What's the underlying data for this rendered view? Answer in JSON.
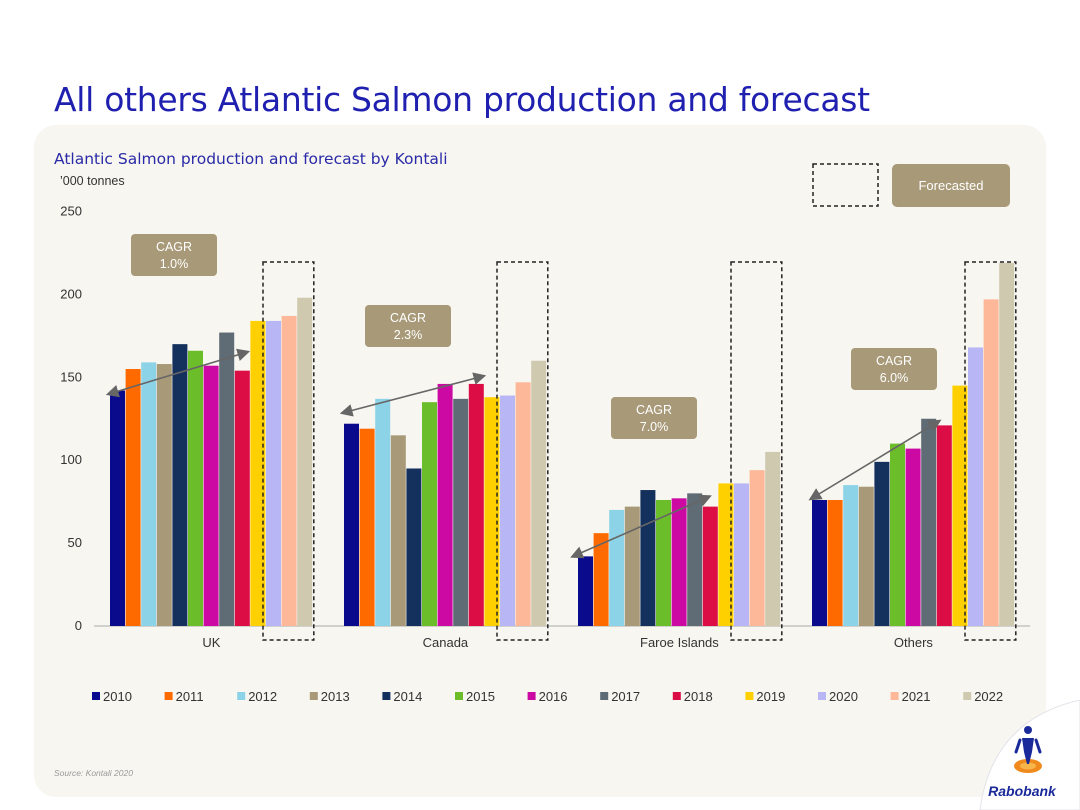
{
  "page": {
    "title": "All others Atlantic Salmon production and forecast",
    "subtitle": "Atlantic Salmon production and forecast by  Kontali",
    "unit": "’000 tonnes",
    "source": "Source: Kontali 2020",
    "logo_text": "Rabobank",
    "forecast_legend_label": "Forecasted"
  },
  "chart_data": {
    "type": "bar",
    "categories": [
      "UK",
      "Canada",
      "Faroe Islands",
      "Others"
    ],
    "ylim": [
      0,
      250
    ],
    "yticks": [
      0,
      50,
      100,
      150,
      200,
      250
    ],
    "legend_position": "bottom",
    "grid": false,
    "series": [
      {
        "name": "2010",
        "color": "#0a0a8c",
        "values": [
          142,
          122,
          42,
          76
        ]
      },
      {
        "name": "2011",
        "color": "#ff6a00",
        "values": [
          155,
          119,
          56,
          76
        ]
      },
      {
        "name": "2012",
        "color": "#8dd3e8",
        "values": [
          159,
          137,
          70,
          85
        ]
      },
      {
        "name": "2013",
        "color": "#a89a78",
        "values": [
          158,
          115,
          72,
          84
        ]
      },
      {
        "name": "2014",
        "color": "#14305c",
        "values": [
          170,
          95,
          82,
          99
        ]
      },
      {
        "name": "2015",
        "color": "#6cbd2a",
        "values": [
          166,
          135,
          76,
          110
        ]
      },
      {
        "name": "2016",
        "color": "#cc0aa3",
        "values": [
          157,
          146,
          77,
          107
        ]
      },
      {
        "name": "2017",
        "color": "#5f6b75",
        "values": [
          177,
          137,
          80,
          125
        ]
      },
      {
        "name": "2018",
        "color": "#dc0c44",
        "values": [
          154,
          146,
          72,
          121
        ]
      },
      {
        "name": "2019",
        "color": "#ffd000",
        "values": [
          184,
          138,
          86,
          145
        ]
      },
      {
        "name": "2020",
        "color": "#b8b6f5",
        "values": [
          184,
          139,
          86,
          168
        ]
      },
      {
        "name": "2021",
        "color": "#fdb89a",
        "values": [
          187,
          147,
          94,
          197
        ]
      },
      {
        "name": "2022",
        "color": "#cfc9b0",
        "values": [
          198,
          160,
          105,
          219
        ]
      }
    ],
    "forecast_series": [
      "2020",
      "2021",
      "2022"
    ],
    "annotations": [
      {
        "category": "UK",
        "label_line1": "CAGR",
        "label_line2": "1.0%"
      },
      {
        "category": "Canada",
        "label_line1": "CAGR",
        "label_line2": "2.3%"
      },
      {
        "category": "Faroe Islands",
        "label_line1": "CAGR",
        "label_line2": "7.0%"
      },
      {
        "category": "Others",
        "label_line1": "CAGR",
        "label_line2": "6.0%"
      }
    ],
    "annotation_color": "#a89a78"
  }
}
